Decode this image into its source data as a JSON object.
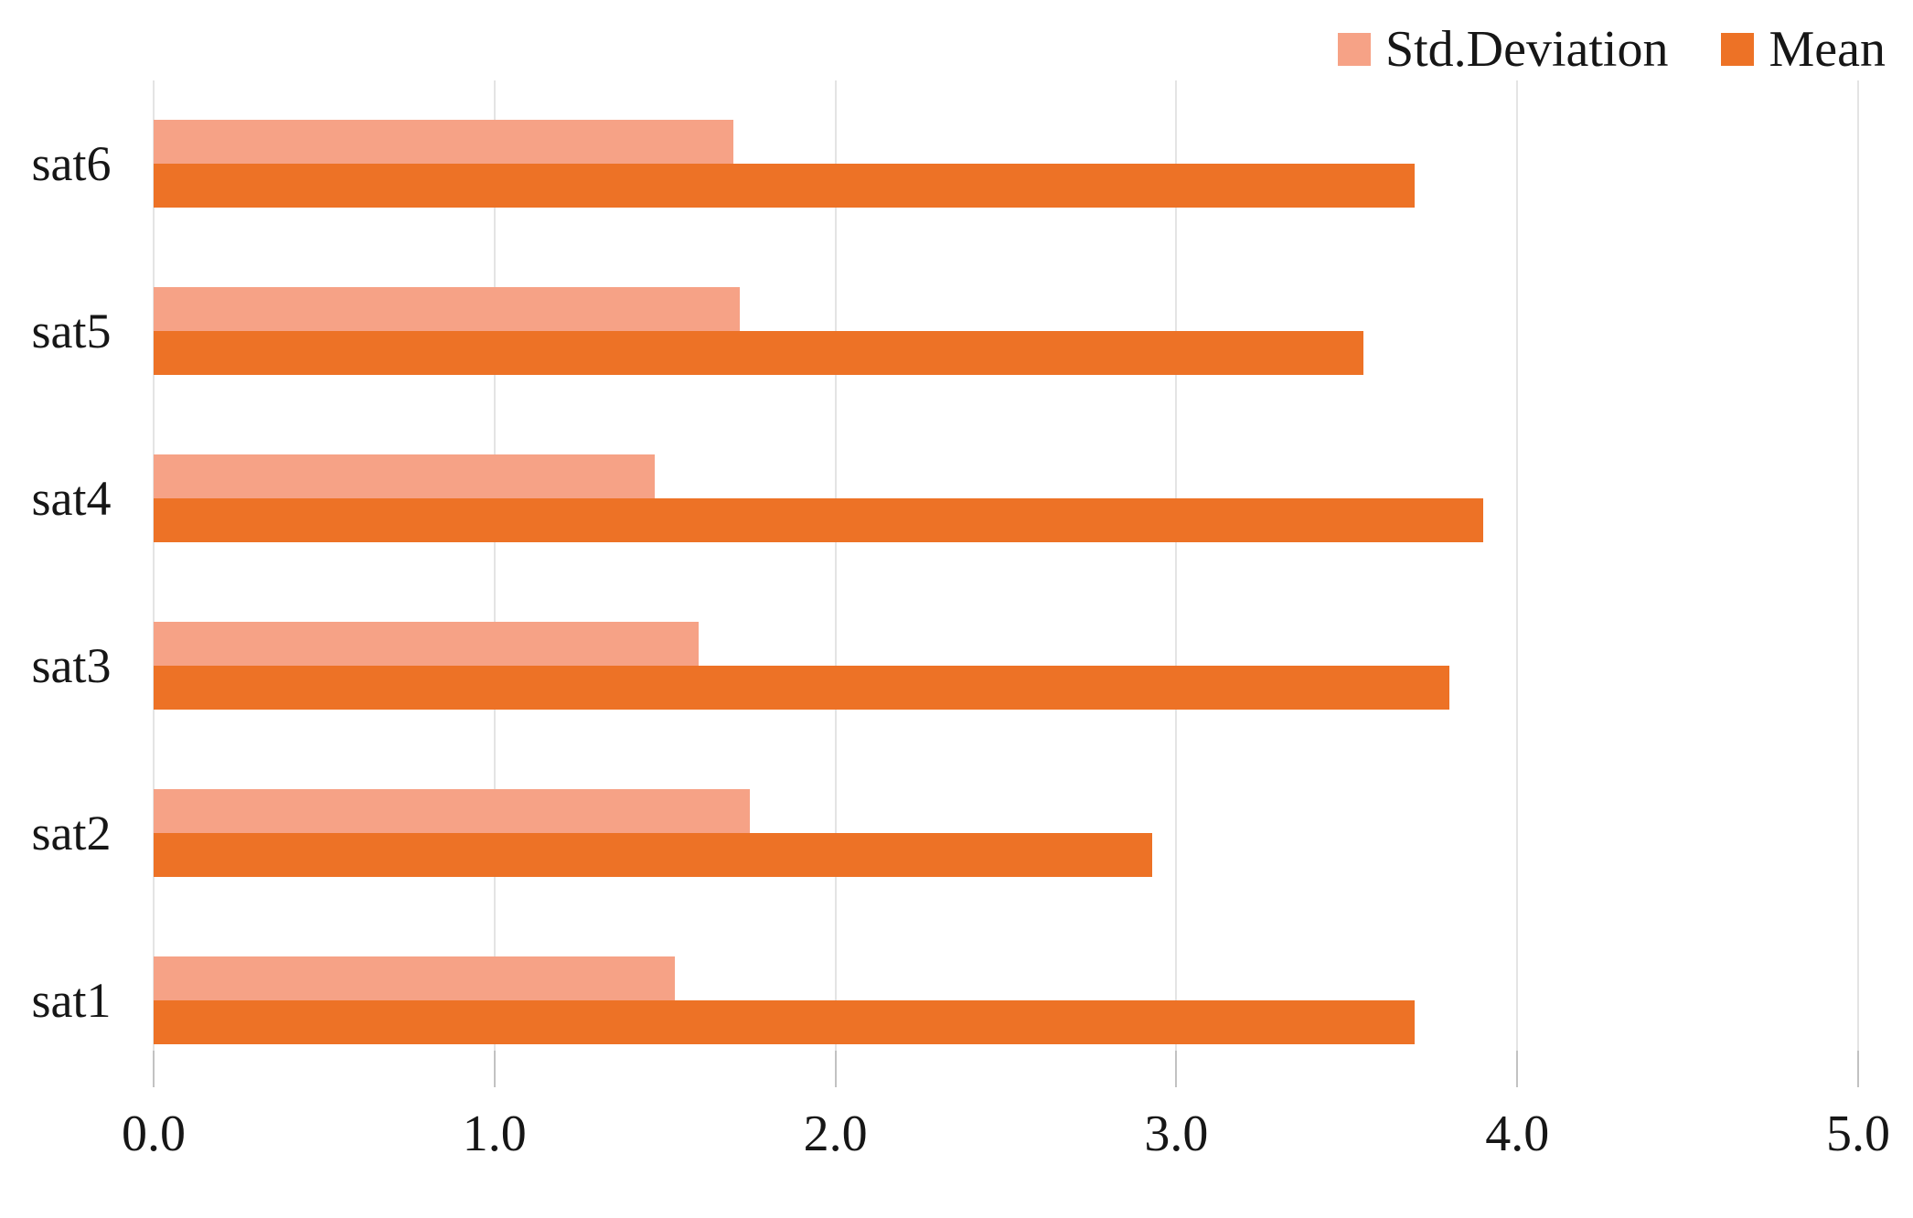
{
  "chart_data": {
    "type": "bar",
    "orientation": "horizontal",
    "title": "",
    "xlabel": "",
    "ylabel": "",
    "categories": [
      "sat6",
      "sat5",
      "sat4",
      "sat3",
      "sat2",
      "sat1"
    ],
    "series": [
      {
        "name": "Std.Deviation",
        "color": "#f6a286",
        "values": [
          1.7,
          1.72,
          1.47,
          1.6,
          1.75,
          1.53
        ]
      },
      {
        "name": "Mean",
        "color": "#ed7226",
        "values": [
          3.7,
          3.55,
          3.9,
          3.8,
          2.93,
          3.7
        ]
      }
    ],
    "x_ticks": [
      "0.0",
      "1.0",
      "2.0",
      "3.0",
      "4.0",
      "5.0"
    ],
    "xlim": [
      0,
      5
    ],
    "grid": "vertical-on",
    "legend_position": "top-right",
    "bar_arrangement": "std-deviation-above-mean"
  },
  "colors": {
    "background": "#ffffff",
    "gridline": "#e4e4e4",
    "tick": "#c2c2c2",
    "text": "#161616"
  }
}
